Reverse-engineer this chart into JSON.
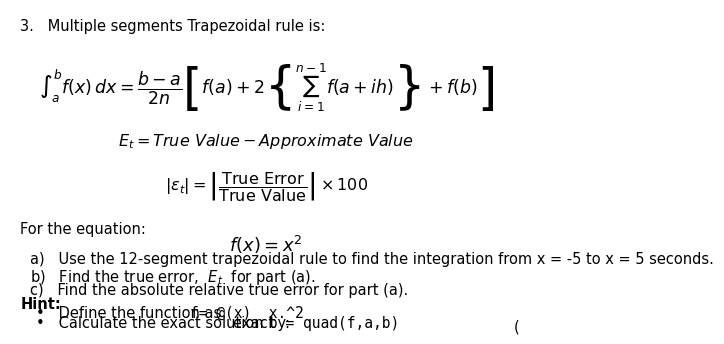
{
  "background_color": "#ffffff",
  "fig_width": 6.61,
  "fig_height": 3.96,
  "body_fontsize": 10.5,
  "heading": "3.   Multiple segments Trapezoidal rule is:",
  "formula_main": "$\\int_a^b f(x)\\,dx = \\dfrac{b-a}{2n}\\left[ f(a) + 2\\left\\{\\sum_{i=1}^{n-1} f(a+ih)\\right\\} + f(b) \\right]$",
  "formula_et": "$E_t = \\mathit{True\\ Value} - \\mathit{Approximate\\ Value}$",
  "formula_rel": "$\\left|\\epsilon_t\\right| = \\left|\\dfrac{\\mathrm{True\\ Error}}{\\mathrm{True\\ Value}}\\right| \\times 100$",
  "for_equation": "For the equation:",
  "fx": "$f(x) = x^2$",
  "part_a": "a)   Use the 12-segment trapezoidal rule to find the integration from x = -5 to x = 5 seconds.",
  "part_b": "b)   Find the true error,  $E_t$  for part (a).",
  "part_c": "c)   Find the absolute relative true error for part (a).",
  "hint": "Hint:",
  "bullet1_normal": "   Define the function as ",
  "bullet1_code": "f= @(x)  x.^2",
  "bullet2_normal": "   Calculate the exact solution by: ",
  "bullet2_code": "exact = quad(f,a,b)"
}
